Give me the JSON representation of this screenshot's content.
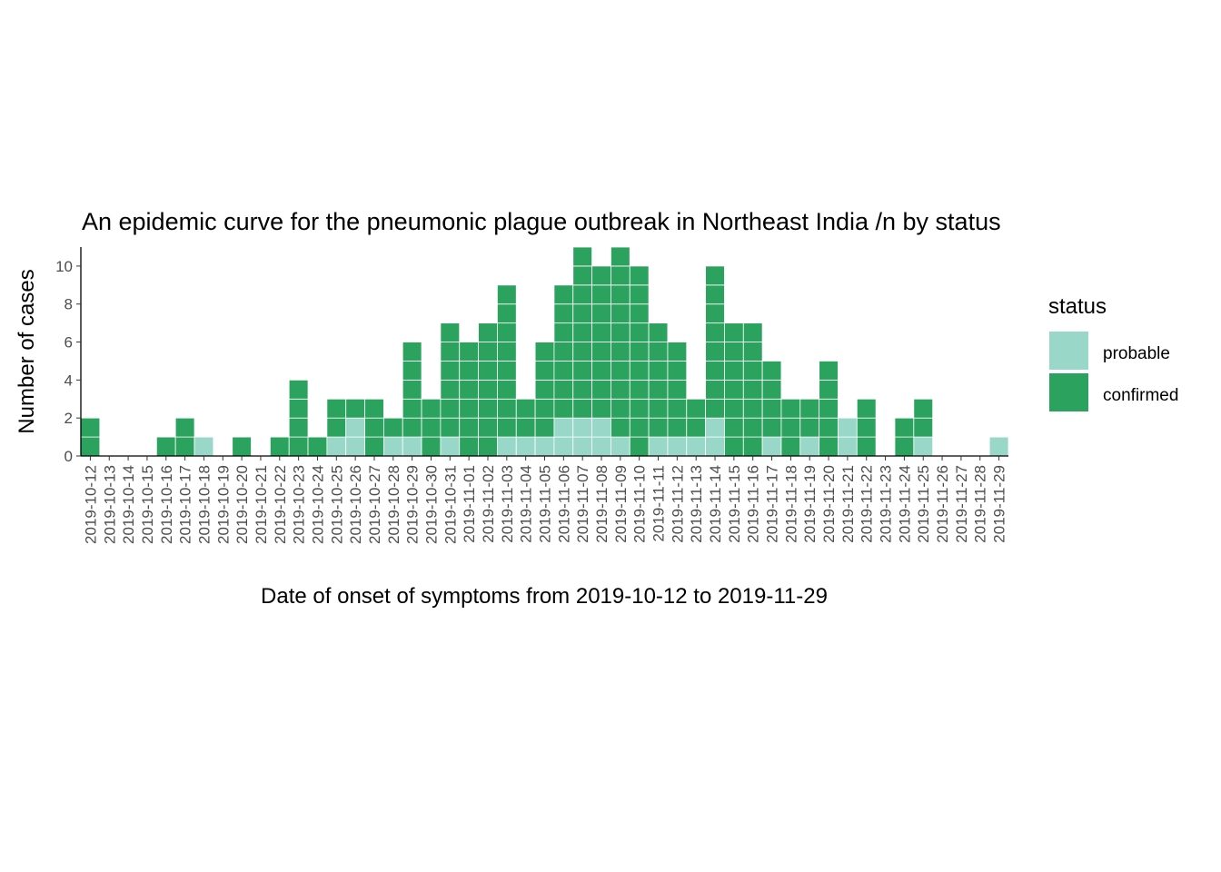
{
  "chart_data": {
    "type": "bar",
    "title": "An epidemic curve for the pneumonic plague outbreak in Northeast India /n by status",
    "xlabel": "Date of onset of symptoms from 2019-10-12 to 2019-11-29",
    "ylabel": "Number of cases",
    "ylim": [
      0,
      11
    ],
    "yticks": [
      "0",
      "2",
      "4",
      "6",
      "8",
      "10"
    ],
    "stacked": true,
    "grid": false,
    "legend": {
      "title": "status",
      "position": "right"
    },
    "categories": [
      "2019-10-12",
      "2019-10-13",
      "2019-10-14",
      "2019-10-15",
      "2019-10-16",
      "2019-10-17",
      "2019-10-18",
      "2019-10-19",
      "2019-10-20",
      "2019-10-21",
      "2019-10-22",
      "2019-10-23",
      "2019-10-24",
      "2019-10-25",
      "2019-10-26",
      "2019-10-27",
      "2019-10-28",
      "2019-10-29",
      "2019-10-30",
      "2019-10-31",
      "2019-11-01",
      "2019-11-02",
      "2019-11-03",
      "2019-11-04",
      "2019-11-05",
      "2019-11-06",
      "2019-11-07",
      "2019-11-08",
      "2019-11-09",
      "2019-11-10",
      "2019-11-11",
      "2019-11-12",
      "2019-11-13",
      "2019-11-14",
      "2019-11-15",
      "2019-11-16",
      "2019-11-17",
      "2019-11-18",
      "2019-11-19",
      "2019-11-20",
      "2019-11-21",
      "2019-11-22",
      "2019-11-23",
      "2019-11-24",
      "2019-11-25",
      "2019-11-26",
      "2019-11-27",
      "2019-11-28",
      "2019-11-29"
    ],
    "series": [
      {
        "name": "probable",
        "color": "#99d8c9",
        "values": [
          0,
          0,
          0,
          0,
          0,
          0,
          1,
          0,
          0,
          0,
          0,
          0,
          0,
          1,
          2,
          0,
          1,
          1,
          0,
          1,
          0,
          0,
          1,
          1,
          1,
          2,
          2,
          2,
          1,
          0,
          1,
          1,
          1,
          2,
          0,
          0,
          1,
          0,
          1,
          0,
          2,
          0,
          0,
          0,
          1,
          0,
          0,
          0,
          1
        ]
      },
      {
        "name": "confirmed",
        "color": "#2ca25f",
        "values": [
          2,
          0,
          0,
          0,
          1,
          2,
          0,
          0,
          1,
          0,
          1,
          4,
          1,
          2,
          1,
          3,
          1,
          5,
          3,
          6,
          6,
          7,
          8,
          2,
          5,
          7,
          9,
          8,
          10,
          10,
          6,
          5,
          2,
          8,
          7,
          7,
          4,
          3,
          2,
          5,
          0,
          3,
          0,
          2,
          2,
          0,
          0,
          0,
          0
        ]
      }
    ]
  }
}
